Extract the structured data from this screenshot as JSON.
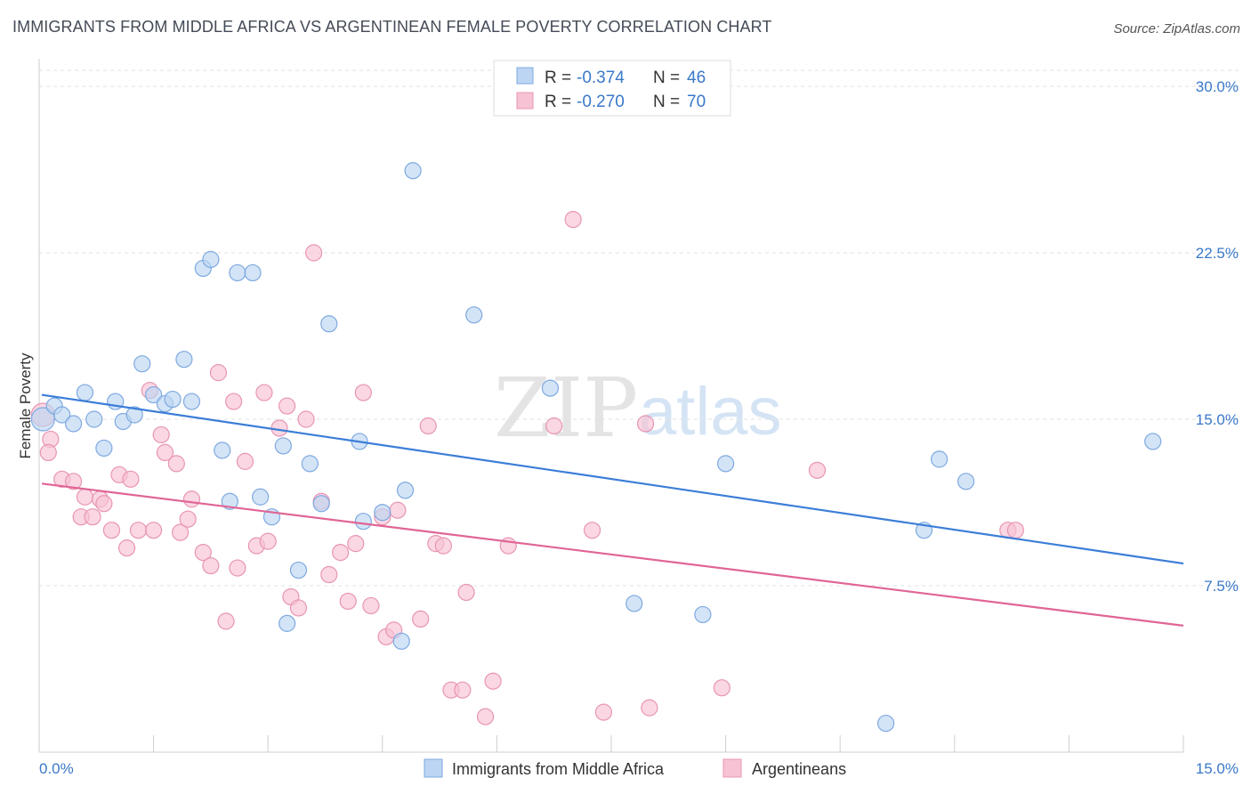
{
  "title": "IMMIGRANTS FROM MIDDLE AFRICA VS ARGENTINEAN FEMALE POVERTY CORRELATION CHART",
  "source": "Source: ZipAtlas.com",
  "watermark": {
    "zip": "ZIP",
    "atlas": "atlas"
  },
  "colors": {
    "blue": "#3b7dd8",
    "blue_fill": "#bcd5f3",
    "pink": "#e06595",
    "pink_fill": "#f7c2d4",
    "tick_text": "#3a78c9",
    "grid": "#e2e2e2"
  },
  "legend": {
    "rows": [
      {
        "r_label": "R =",
        "r_value": "-0.374",
        "n_label": "N =",
        "n_value": "46"
      },
      {
        "r_label": "R =",
        "r_value": "-0.270",
        "n_label": "N =",
        "n_value": "70"
      }
    ]
  },
  "bottom_legend": [
    "Immigrants from Middle Africa",
    "Argentineans"
  ],
  "chart_data": {
    "type": "scatter",
    "title": "IMMIGRANTS FROM MIDDLE AFRICA VS ARGENTINEAN FEMALE POVERTY CORRELATION CHART",
    "xlabel": "",
    "ylabel": "Female Poverty",
    "xlim": [
      0,
      15
    ],
    "ylim": [
      0,
      30
    ],
    "y_ticks": [
      7.5,
      15.0,
      22.5,
      30.0
    ],
    "y_tick_labels": [
      "7.5%",
      "15.0%",
      "22.5%",
      "30.0%"
    ],
    "x_tick_labels": [
      "0.0%",
      "15.0%"
    ],
    "grid": true,
    "legend_position": "top-center",
    "series": [
      {
        "name": "Immigrants from Middle Africa",
        "color": "#3b7dd8",
        "trend": {
          "x": [
            0,
            15
          ],
          "y": [
            16.1,
            8.5
          ]
        },
        "points": [
          [
            0.05,
            15.0
          ],
          [
            0.2,
            15.6
          ],
          [
            0.3,
            15.2
          ],
          [
            0.45,
            14.8
          ],
          [
            0.6,
            16.2
          ],
          [
            0.72,
            15.0
          ],
          [
            0.85,
            13.7
          ],
          [
            1.0,
            15.8
          ],
          [
            1.1,
            14.9
          ],
          [
            1.25,
            15.2
          ],
          [
            1.35,
            17.5
          ],
          [
            1.5,
            16.1
          ],
          [
            1.65,
            15.7
          ],
          [
            1.75,
            15.9
          ],
          [
            1.9,
            17.7
          ],
          [
            2.0,
            15.8
          ],
          [
            2.15,
            21.8
          ],
          [
            2.25,
            22.2
          ],
          [
            2.4,
            13.6
          ],
          [
            2.5,
            11.3
          ],
          [
            2.6,
            21.6
          ],
          [
            2.8,
            21.6
          ],
          [
            2.9,
            11.5
          ],
          [
            3.05,
            10.6
          ],
          [
            3.2,
            13.8
          ],
          [
            3.4,
            8.2
          ],
          [
            3.25,
            5.8
          ],
          [
            3.55,
            13.0
          ],
          [
            3.7,
            11.2
          ],
          [
            3.8,
            19.3
          ],
          [
            4.2,
            14.0
          ],
          [
            4.25,
            10.4
          ],
          [
            4.5,
            10.8
          ],
          [
            4.75,
            5.0
          ],
          [
            4.8,
            11.8
          ],
          [
            4.9,
            26.2
          ],
          [
            5.7,
            19.7
          ],
          [
            6.7,
            16.4
          ],
          [
            7.8,
            6.7
          ],
          [
            8.7,
            6.2
          ],
          [
            9.0,
            13.0
          ],
          [
            11.1,
            1.3
          ],
          [
            11.6,
            10.0
          ],
          [
            11.8,
            13.2
          ],
          [
            12.15,
            12.2
          ],
          [
            14.6,
            14.0
          ]
        ]
      },
      {
        "name": "Argentineans",
        "color": "#e06595",
        "trend": {
          "x": [
            0,
            15
          ],
          "y": [
            12.1,
            5.7
          ]
        },
        "points": [
          [
            0.05,
            15.2
          ],
          [
            0.15,
            14.1
          ],
          [
            0.12,
            13.5
          ],
          [
            0.3,
            12.3
          ],
          [
            0.45,
            12.2
          ],
          [
            0.55,
            10.6
          ],
          [
            0.6,
            11.5
          ],
          [
            0.7,
            10.6
          ],
          [
            0.8,
            11.4
          ],
          [
            0.85,
            11.2
          ],
          [
            0.95,
            10.0
          ],
          [
            1.05,
            12.5
          ],
          [
            1.15,
            9.2
          ],
          [
            1.2,
            12.3
          ],
          [
            1.3,
            10.0
          ],
          [
            1.45,
            16.3
          ],
          [
            1.5,
            10.0
          ],
          [
            1.6,
            14.3
          ],
          [
            1.65,
            13.5
          ],
          [
            1.8,
            13.0
          ],
          [
            1.85,
            9.9
          ],
          [
            1.95,
            10.5
          ],
          [
            2.0,
            11.4
          ],
          [
            2.15,
            9.0
          ],
          [
            2.25,
            8.4
          ],
          [
            2.35,
            17.1
          ],
          [
            2.45,
            5.9
          ],
          [
            2.55,
            15.8
          ],
          [
            2.6,
            8.3
          ],
          [
            2.7,
            13.1
          ],
          [
            2.85,
            9.3
          ],
          [
            2.95,
            16.2
          ],
          [
            3.0,
            9.5
          ],
          [
            3.15,
            14.6
          ],
          [
            3.25,
            15.6
          ],
          [
            3.3,
            7.0
          ],
          [
            3.4,
            6.5
          ],
          [
            3.5,
            15.0
          ],
          [
            3.6,
            22.5
          ],
          [
            3.7,
            11.3
          ],
          [
            3.8,
            8.0
          ],
          [
            3.95,
            9.0
          ],
          [
            4.05,
            6.8
          ],
          [
            4.15,
            9.4
          ],
          [
            4.25,
            16.2
          ],
          [
            4.35,
            6.6
          ],
          [
            4.5,
            10.6
          ],
          [
            4.55,
            5.2
          ],
          [
            4.65,
            5.5
          ],
          [
            4.7,
            10.9
          ],
          [
            5.0,
            6.0
          ],
          [
            5.1,
            14.7
          ],
          [
            5.2,
            9.4
          ],
          [
            5.3,
            9.3
          ],
          [
            5.4,
            2.8
          ],
          [
            5.55,
            2.8
          ],
          [
            5.6,
            7.2
          ],
          [
            5.85,
            1.6
          ],
          [
            5.95,
            3.2
          ],
          [
            6.15,
            9.3
          ],
          [
            6.75,
            14.7
          ],
          [
            7.0,
            24.0
          ],
          [
            7.25,
            10.0
          ],
          [
            7.4,
            1.8
          ],
          [
            7.95,
            14.8
          ],
          [
            8.0,
            2.0
          ],
          [
            8.95,
            2.9
          ],
          [
            10.2,
            12.7
          ],
          [
            12.7,
            10.0
          ],
          [
            12.8,
            10.0
          ]
        ]
      }
    ]
  }
}
